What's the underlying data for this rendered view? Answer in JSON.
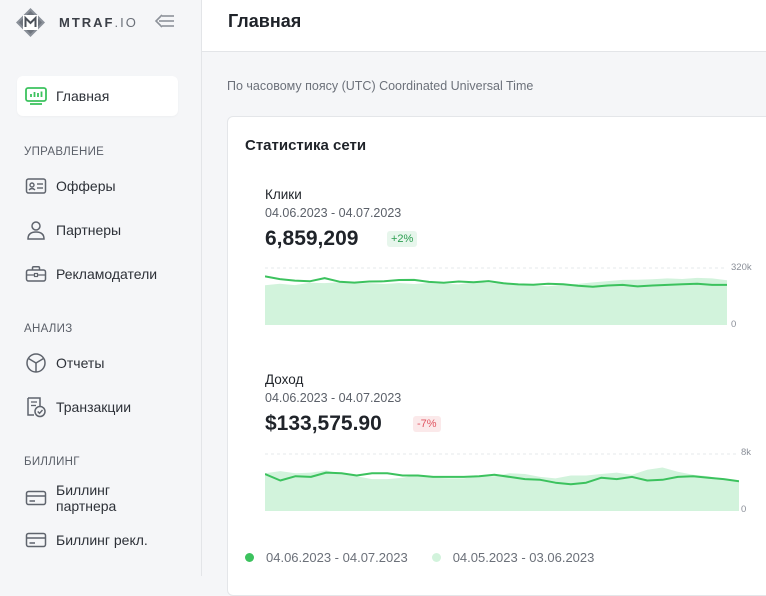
{
  "brand": {
    "name_bold": "MTRAF",
    "name_light": ".IO"
  },
  "header": {
    "title": "Главная"
  },
  "timezone_note": "По часовому поясу (UTC) Coordinated Universal Time",
  "sidebar": {
    "home": {
      "label": "Главная",
      "icon": "dashboard-icon"
    },
    "sections": [
      {
        "title": "УПРАВЛЕНИЕ",
        "items": [
          {
            "label": "Офферы",
            "icon": "id-card-icon"
          },
          {
            "label": "Партнеры",
            "icon": "user-icon"
          },
          {
            "label": "Рекламодатели",
            "icon": "briefcase-icon"
          }
        ]
      },
      {
        "title": "АНАЛИЗ",
        "items": [
          {
            "label": "Отчеты",
            "icon": "pie-chart-icon"
          },
          {
            "label": "Транзакции",
            "icon": "receipt-check-icon"
          }
        ]
      },
      {
        "title": "БИЛЛИНГ",
        "items": [
          {
            "label": "Биллинг партнера",
            "icon": "credit-card-icon"
          },
          {
            "label": "Биллинг рекл.",
            "icon": "credit-card-icon"
          }
        ]
      }
    ]
  },
  "stats": {
    "title": "Статистика сети",
    "legend": {
      "current": "04.06.2023 - 04.07.2023",
      "previous": "04.05.2023 - 03.06.2023"
    },
    "colors": {
      "current": "#3cc25e",
      "previous": "#d2f3dc"
    },
    "clicks": {
      "label": "Клики",
      "range": "04.06.2023 - 04.07.2023",
      "value": "6,859,209",
      "change": "+2%",
      "axis_top": "320k",
      "axis_bottom": "0"
    },
    "income": {
      "label": "Доход",
      "range": "04.06.2023 - 04.07.2023",
      "value": "$133,575.90",
      "change": "-7%",
      "axis_top": "8k",
      "axis_bottom": "0"
    }
  },
  "chart_data": [
    {
      "type": "area",
      "ylabel": "",
      "ylim": [
        0,
        320000
      ],
      "grid": false,
      "series": [
        {
          "name": "04.06.2023 - 04.07.2023",
          "values": [
            268000,
            253000,
            245000,
            241000,
            259000,
            239000,
            234000,
            240000,
            241000,
            248000,
            249000,
            238000,
            233000,
            240000,
            236000,
            242000,
            230000,
            224000,
            222000,
            228000,
            225000,
            216000,
            211000,
            218000,
            221000,
            213000,
            218000,
            221000,
            225000,
            228000,
            221000,
            221000
          ]
        },
        {
          "name": "04.05.2023 - 03.06.2023",
          "values": [
            219000,
            228000,
            220000,
            233000,
            231000,
            236000,
            229000,
            231000,
            226000,
            232000,
            226000,
            232000,
            228000,
            224000,
            236000,
            233000,
            226000,
            221000,
            218000,
            214000,
            222000,
            227000,
            235000,
            242000,
            249000,
            250000,
            252000,
            257000,
            254000,
            260000,
            257000,
            247000
          ]
        }
      ]
    },
    {
      "type": "area",
      "ylabel": "",
      "ylim": [
        0,
        8000
      ],
      "grid": false,
      "series": [
        {
          "name": "04.06.2023 - 04.07.2023",
          "values": [
            5100,
            4200,
            4800,
            4700,
            5300,
            5200,
            4900,
            5200,
            5200,
            4900,
            4900,
            4700,
            4700,
            4700,
            4800,
            5000,
            4700,
            4400,
            4300,
            3900,
            3700,
            3900,
            4600,
            4400,
            4700,
            4200,
            4300,
            4700,
            4800,
            4600,
            4400,
            4100
          ]
        },
        {
          "name": "04.05.2023 - 03.06.2023",
          "values": [
            5200,
            5500,
            5200,
            5300,
            5600,
            5100,
            4800,
            4400,
            4400,
            4600,
            5000,
            4600,
            4500,
            4500,
            4800,
            4800,
            5200,
            5100,
            4700,
            4500,
            4900,
            4900,
            5100,
            5300,
            5000,
            5700,
            6000,
            5400,
            5000,
            4800,
            4400,
            4100
          ]
        }
      ]
    }
  ]
}
